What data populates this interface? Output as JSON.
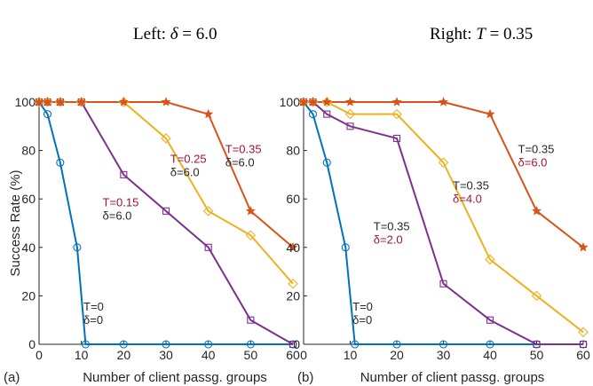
{
  "header": {
    "left_prefix": "Left: ",
    "left_var": "δ",
    "left_eq": " = 6.0",
    "right_prefix": "Right: ",
    "right_var": "T",
    "right_eq": " = 0.35"
  },
  "colors": {
    "blue": "#0072BD",
    "orange": "#D95319",
    "yellow": "#EDB120",
    "purple": "#7E2F8E",
    "red_text": "#A2142F",
    "axis": "#262626"
  },
  "chart_data": [
    {
      "type": "line",
      "panel_label": "(a)",
      "xlabel": "Number of client passg. groups",
      "ylabel": "Success Rate (%)",
      "xlim": [
        0,
        60
      ],
      "ylim": [
        0,
        100
      ],
      "xticks": [
        0,
        10,
        20,
        30,
        40,
        50,
        60
      ],
      "yticks": [
        0,
        20,
        40,
        60,
        80,
        100
      ],
      "series": [
        {
          "color": "blue",
          "marker": "circle",
          "x": [
            0,
            2,
            5,
            9,
            11,
            20,
            30,
            40,
            50,
            60
          ],
          "y": [
            100,
            95,
            75,
            40,
            0,
            0,
            0,
            0,
            0,
            0
          ]
        },
        {
          "color": "purple",
          "marker": "square",
          "x": [
            0,
            2,
            5,
            10,
            20,
            30,
            40,
            50,
            60
          ],
          "y": [
            100,
            100,
            100,
            100,
            70,
            55,
            40,
            10,
            0
          ]
        },
        {
          "color": "yellow",
          "marker": "diamond",
          "x": [
            0,
            2,
            5,
            10,
            20,
            30,
            40,
            50,
            60
          ],
          "y": [
            100,
            100,
            100,
            100,
            100,
            85,
            55,
            45,
            25
          ]
        },
        {
          "color": "orange",
          "marker": "star",
          "x": [
            0,
            2,
            5,
            10,
            20,
            30,
            40,
            50,
            60
          ],
          "y": [
            100,
            100,
            100,
            100,
            100,
            100,
            95,
            55,
            40
          ]
        }
      ],
      "annotations": [
        {
          "line1": "T=0",
          "line2": "δ=0",
          "c1": "axis",
          "c2": "axis",
          "x": 10.5,
          "y": 14
        },
        {
          "line1": "T=0.15",
          "line2": "δ=6.0",
          "c1": "red_text",
          "c2": "axis",
          "x": 15,
          "y": 57
        },
        {
          "line1": "T=0.25",
          "line2": "δ=6.0",
          "c1": "red_text",
          "c2": "axis",
          "x": 31,
          "y": 75
        },
        {
          "line1": "T=0.35",
          "line2": "δ=6.0",
          "c1": "red_text",
          "c2": "axis",
          "x": 44,
          "y": 79
        }
      ]
    },
    {
      "type": "line",
      "panel_label": "(b)",
      "xlabel": "Number of client passg. groups",
      "ylabel": "",
      "xlim": [
        0,
        60
      ],
      "ylim": [
        0,
        100
      ],
      "xticks": [
        0,
        10,
        20,
        30,
        40,
        50,
        60
      ],
      "yticks": [
        0,
        20,
        40,
        60,
        80,
        100
      ],
      "series": [
        {
          "color": "blue",
          "marker": "circle",
          "x": [
            0,
            2,
            5,
            9,
            11,
            20,
            30,
            40,
            50,
            60
          ],
          "y": [
            100,
            95,
            75,
            40,
            0,
            0,
            0,
            0,
            0,
            0
          ]
        },
        {
          "color": "purple",
          "marker": "square",
          "x": [
            0,
            2,
            5,
            10,
            20,
            30,
            40,
            50,
            60
          ],
          "y": [
            100,
            100,
            95,
            90,
            85,
            25,
            10,
            0,
            0
          ]
        },
        {
          "color": "yellow",
          "marker": "diamond",
          "x": [
            0,
            2,
            5,
            10,
            20,
            30,
            40,
            50,
            60
          ],
          "y": [
            100,
            100,
            100,
            95,
            95,
            75,
            35,
            20,
            5
          ]
        },
        {
          "color": "orange",
          "marker": "star",
          "x": [
            0,
            2,
            5,
            10,
            20,
            30,
            40,
            50,
            60
          ],
          "y": [
            100,
            100,
            100,
            100,
            100,
            100,
            95,
            55,
            40
          ]
        }
      ],
      "annotations": [
        {
          "line1": "T=0",
          "line2": "δ=0",
          "c1": "axis",
          "c2": "axis",
          "x": 10.5,
          "y": 14
        },
        {
          "line1": "T=0.35",
          "line2": "δ=2.0",
          "c1": "axis",
          "c2": "red_text",
          "x": 15,
          "y": 47
        },
        {
          "line1": "T=0.35",
          "line2": "δ=4.0",
          "c1": "axis",
          "c2": "red_text",
          "x": 32,
          "y": 64
        },
        {
          "line1": "T=0.35",
          "line2": "δ=6.0",
          "c1": "axis",
          "c2": "red_text",
          "x": 46,
          "y": 79
        }
      ]
    }
  ]
}
